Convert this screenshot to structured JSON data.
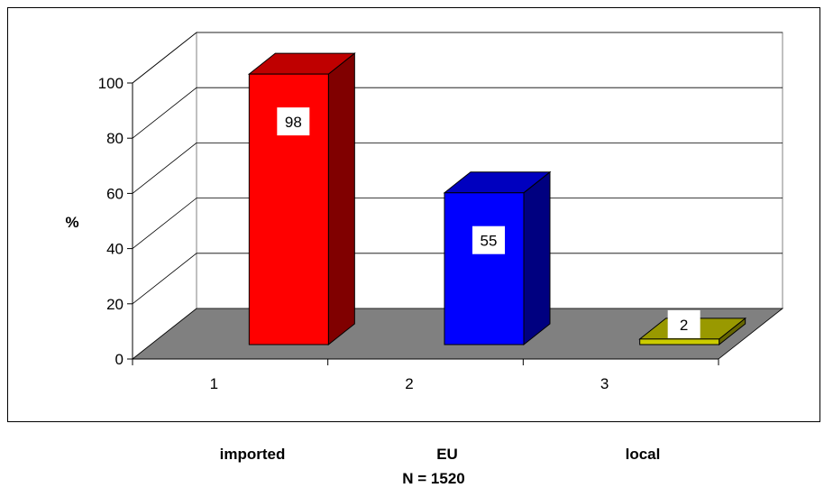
{
  "chart_data": {
    "type": "bar",
    "categories": [
      "1",
      "2",
      "3"
    ],
    "category_names": [
      "imported",
      "EU",
      "local"
    ],
    "values": [
      98,
      55,
      2
    ],
    "bar_colors": [
      "#ff0000",
      "#0000ff",
      "#cccc00"
    ],
    "ylabel": "%",
    "ylim": [
      0,
      100
    ],
    "yticks": [
      0,
      20,
      40,
      60,
      80,
      100
    ],
    "grid": true,
    "floor_color": "#808080",
    "footnote": "N = 1520"
  }
}
